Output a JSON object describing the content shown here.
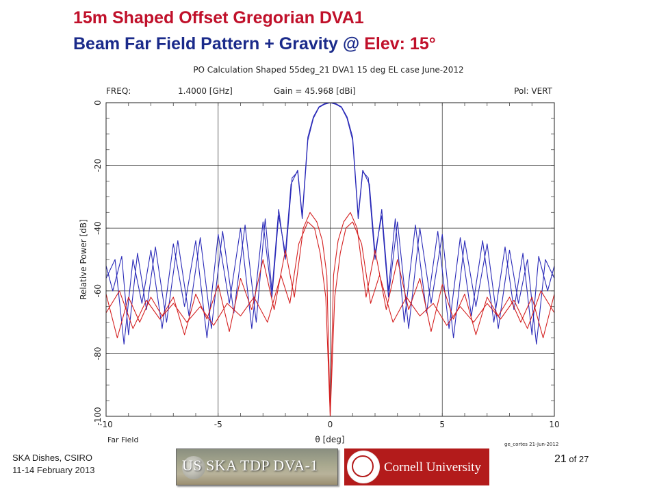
{
  "slide": {
    "title_line1": "15m Shaped Offset Gregorian DVA1",
    "title_line2_part1": "Beam Far Field Pattern + Gravity @ ",
    "title_line2_part2": "Elev: 15°",
    "footer_line1": "SKA Dishes, CSIRO",
    "footer_line2": "11-14 February 2013",
    "page_current": "21",
    "page_of": " of 27",
    "logo_us_text": "US SKA TDP  DVA-1",
    "logo_cornell_text": "Cornell University"
  },
  "colors": {
    "title_red": "#c0102a",
    "title_navy": "#1a2a8a",
    "copol": "#2a2ab8",
    "xpol": "#d42020",
    "cornell_red": "#b31b1b"
  },
  "chart_data": {
    "type": "line",
    "title": "PO Calculation Shaped 55deg_21 DVA1 15 deg EL case June-2012",
    "info_left": "FREQ:",
    "info_freq": "1.4000 [GHz]",
    "info_gain": "Gain =   45.968 [dBi]",
    "info_pol": "Pol: VERT",
    "xlabel": "θ [deg]",
    "ylabel": "Relative Power [dB]",
    "bottom_left_label": "Far Field",
    "credit": "ge_cortes 21-Jun-2012",
    "xlim": [
      -10,
      10
    ],
    "ylim": [
      -100,
      0
    ],
    "xticks": [
      -10,
      -5,
      0,
      5,
      10
    ],
    "yticks": [
      0,
      -20,
      -40,
      -60,
      -80,
      -100
    ],
    "xtick_labels": [
      "-10",
      "-5",
      "0",
      "5",
      "10"
    ],
    "ytick_labels": [
      "0",
      "-20",
      "-40",
      "-60",
      "-80",
      "-100"
    ],
    "grid": true,
    "series": [
      {
        "group": "co-polar",
        "color": "#2a2ab8",
        "x": [
          -10,
          -9.7,
          -9.3,
          -9.0,
          -8.6,
          -8.2,
          -7.8,
          -7.3,
          -6.8,
          -6.3,
          -5.8,
          -5.3,
          -4.8,
          -4.3,
          -3.8,
          -3.3,
          -2.9,
          -2.6,
          -2.3,
          -2.0,
          -1.7,
          -1.45,
          -1.25,
          -1.0,
          -0.75,
          -0.5,
          -0.25,
          0,
          0.25,
          0.5,
          0.75,
          1.0,
          1.25,
          1.45,
          1.7,
          2.0,
          2.3,
          2.6,
          2.9,
          3.3,
          3.8,
          4.3,
          4.8,
          5.3,
          5.8,
          6.3,
          6.8,
          7.3,
          7.8,
          8.2,
          8.6,
          9.0,
          9.3,
          9.7,
          10
        ],
        "y": [
          -52,
          -60,
          -49,
          -74,
          -48,
          -66,
          -46,
          -70,
          -44,
          -68,
          -43,
          -72,
          -41,
          -67,
          -39,
          -70,
          -37,
          -60,
          -34,
          -50,
          -24,
          -22,
          -37,
          -12,
          -5,
          -1.5,
          -0.5,
          0,
          -0.5,
          -1.5,
          -5,
          -12,
          -37,
          -22,
          -24,
          -50,
          -34,
          -60,
          -37,
          -70,
          -39,
          -67,
          -41,
          -72,
          -43,
          -68,
          -44,
          -70,
          -46,
          -66,
          -48,
          -74,
          -49,
          -60,
          -52
        ]
      },
      {
        "group": "co-polar",
        "color": "#2a2ab8",
        "x": [
          -10,
          -9.6,
          -9.2,
          -8.8,
          -8.4,
          -8.0,
          -7.5,
          -7.0,
          -6.5,
          -6.0,
          -5.5,
          -5.0,
          -4.5,
          -4.0,
          -3.5,
          -3.0,
          -2.6,
          -2.3,
          -2.0,
          -1.75,
          -1.45,
          -1.25,
          -1.0,
          -0.75,
          -0.5,
          -0.25,
          0,
          0.25,
          0.5,
          0.75,
          1.0,
          1.25,
          1.45,
          1.75,
          2.0,
          2.3,
          2.6,
          3.0,
          3.5,
          4.0,
          4.5,
          5.0,
          5.5,
          6.0,
          6.5,
          7.0,
          7.5,
          8.0,
          8.4,
          8.8,
          9.2,
          9.6,
          10
        ],
        "y": [
          -56,
          -50,
          -77,
          -50,
          -64,
          -47,
          -72,
          -45,
          -65,
          -44,
          -75,
          -42,
          -64,
          -40,
          -72,
          -38,
          -62,
          -36,
          -48,
          -26,
          -21.5,
          -36,
          -11,
          -4.5,
          -1.3,
          -0.3,
          0,
          -0.3,
          -1.3,
          -4.5,
          -11,
          -36,
          -21.5,
          -26,
          -48,
          -36,
          -62,
          -38,
          -72,
          -40,
          -64,
          -42,
          -75,
          -44,
          -65,
          -45,
          -72,
          -47,
          -64,
          -50,
          -77,
          -50,
          -56
        ]
      },
      {
        "group": "cross-polar",
        "color": "#d42020",
        "x": [
          -10,
          -9.5,
          -9.0,
          -8.5,
          -8.0,
          -7.5,
          -7.0,
          -6.5,
          -6.0,
          -5.5,
          -5.0,
          -4.5,
          -4.0,
          -3.5,
          -3.0,
          -2.5,
          -2.0,
          -1.6,
          -1.2,
          -0.9,
          -0.6,
          -0.35,
          -0.15,
          0,
          0.15,
          0.35,
          0.6,
          0.9,
          1.2,
          1.6,
          2.0,
          2.5,
          3.0,
          3.5,
          4.0,
          4.5,
          5.0,
          5.5,
          6.0,
          6.5,
          7.0,
          7.5,
          8.0,
          8.5,
          9.0,
          9.5,
          10
        ],
        "y": [
          -61,
          -75,
          -62,
          -70,
          -62,
          -68,
          -62,
          -74,
          -61,
          -69,
          -58,
          -73,
          -56,
          -66,
          -50,
          -66,
          -47,
          -62,
          -40,
          -35,
          -38,
          -44,
          -55,
          -100,
          -55,
          -44,
          -38,
          -35,
          -40,
          -62,
          -47,
          -66,
          -50,
          -66,
          -56,
          -73,
          -58,
          -69,
          -61,
          -74,
          -62,
          -68,
          -62,
          -70,
          -62,
          -75,
          -61
        ]
      },
      {
        "group": "cross-polar",
        "color": "#d42020",
        "x": [
          -10,
          -9.4,
          -8.8,
          -8.2,
          -7.6,
          -7.0,
          -6.4,
          -5.8,
          -5.2,
          -4.6,
          -4.0,
          -3.4,
          -2.8,
          -2.2,
          -1.8,
          -1.4,
          -1.0,
          -0.7,
          -0.45,
          -0.2,
          0,
          0.2,
          0.45,
          0.7,
          1.0,
          1.4,
          1.8,
          2.2,
          2.8,
          3.4,
          4.0,
          4.6,
          5.2,
          5.8,
          6.4,
          7.0,
          7.6,
          8.2,
          8.8,
          9.4,
          10
        ],
        "y": [
          -67,
          -60,
          -72,
          -63,
          -69,
          -64,
          -70,
          -65,
          -71,
          -64,
          -68,
          -62,
          -70,
          -55,
          -64,
          -45,
          -38,
          -40,
          -48,
          -62,
          -100,
          -62,
          -48,
          -40,
          -38,
          -45,
          -64,
          -55,
          -70,
          -62,
          -68,
          -64,
          -71,
          -65,
          -70,
          -64,
          -69,
          -63,
          -72,
          -60,
          -67
        ]
      }
    ]
  }
}
